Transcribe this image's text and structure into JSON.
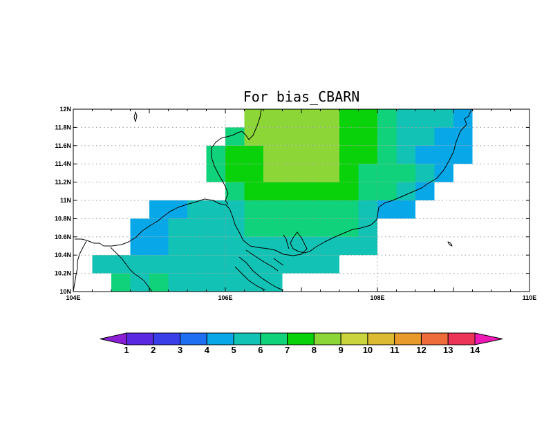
{
  "title": "For bias_CBARN",
  "map": {
    "lon_range": [
      104,
      110
    ],
    "lat_range": [
      10,
      12
    ],
    "cell_size": [
      0.25,
      0.2
    ],
    "lon_ticks": [
      {
        "value": 104,
        "label": "104E"
      },
      {
        "value": 106,
        "label": "106E"
      },
      {
        "value": 108,
        "label": "108E"
      },
      {
        "value": 110,
        "label": "110E"
      }
    ],
    "lat_ticks": [
      {
        "value": 10,
        "label": "10N"
      },
      {
        "value": 10.2,
        "label": "10.2N"
      },
      {
        "value": 10.4,
        "label": "10.4N"
      },
      {
        "value": 10.6,
        "label": "10.6N"
      },
      {
        "value": 10.8,
        "label": "10.8N"
      },
      {
        "value": 11,
        "label": "11N"
      },
      {
        "value": 11.2,
        "label": "11.2N"
      },
      {
        "value": 11.4,
        "label": "11.4N"
      },
      {
        "value": 11.6,
        "label": "11.6N"
      },
      {
        "value": 11.8,
        "label": "11.8N"
      },
      {
        "value": 12,
        "label": "12N"
      }
    ],
    "grid": "dotted"
  },
  "colorbar": {
    "levels": [
      "1",
      "2",
      "3",
      "4",
      "5",
      "6",
      "7",
      "8",
      "9",
      "10",
      "11",
      "12",
      "13",
      "14"
    ],
    "colors": [
      "#8a1fd6",
      "#5a28e0",
      "#3a3ee8",
      "#1e6ff2",
      "#08a8e8",
      "#12c2b4",
      "#0fd27a",
      "#0ad20a",
      "#8cd638",
      "#cad43c",
      "#dcbb32",
      "#e89a2a",
      "#ee6c3a",
      "#ec3458",
      "#ee18b4"
    ]
  },
  "chart_data": {
    "type": "heatmap",
    "title": "For bias_CBARN",
    "x_range": [
      104,
      110
    ],
    "y_range": [
      10,
      12
    ],
    "cell_width_deg": 0.25,
    "cell_height_deg": 0.2,
    "color_levels": [
      1,
      2,
      3,
      4,
      5,
      6,
      7,
      8,
      9,
      10,
      11,
      12,
      13,
      14
    ],
    "rows": [
      {
        "lat": [
          11.8,
          12.0
        ],
        "runs": [
          [
            106.25,
            107.5,
            "8"
          ],
          [
            107.5,
            108.0,
            "7"
          ],
          [
            108.0,
            108.25,
            "6"
          ],
          [
            108.25,
            109.0,
            "5"
          ],
          [
            109.0,
            109.25,
            "4"
          ]
        ]
      },
      {
        "lat": [
          11.6,
          11.8
        ],
        "runs": [
          [
            106.0,
            106.25,
            "6"
          ],
          [
            106.25,
            107.5,
            "8"
          ],
          [
            107.5,
            108.0,
            "7"
          ],
          [
            108.0,
            108.25,
            "6"
          ],
          [
            108.25,
            108.75,
            "5"
          ],
          [
            108.75,
            109.25,
            "4"
          ]
        ]
      },
      {
        "lat": [
          11.4,
          11.6
        ],
        "runs": [
          [
            105.75,
            106.0,
            "6"
          ],
          [
            106.0,
            106.5,
            "7"
          ],
          [
            106.5,
            107.5,
            "8"
          ],
          [
            107.5,
            108.0,
            "7"
          ],
          [
            108.0,
            108.25,
            "6"
          ],
          [
            108.25,
            108.5,
            "5"
          ],
          [
            108.5,
            109.25,
            "4"
          ]
        ]
      },
      {
        "lat": [
          11.2,
          11.4
        ],
        "runs": [
          [
            105.75,
            106.0,
            "6"
          ],
          [
            106.0,
            106.5,
            "7"
          ],
          [
            106.5,
            107.5,
            "8"
          ],
          [
            107.5,
            107.75,
            "7"
          ],
          [
            107.75,
            108.5,
            "6"
          ],
          [
            108.5,
            108.75,
            "5"
          ],
          [
            108.75,
            109.0,
            "4"
          ]
        ]
      },
      {
        "lat": [
          11.0,
          11.2
        ],
        "runs": [
          [
            106.0,
            106.25,
            "6"
          ],
          [
            106.25,
            107.75,
            "7"
          ],
          [
            107.75,
            108.25,
            "6"
          ],
          [
            108.25,
            108.5,
            "5"
          ],
          [
            108.5,
            108.75,
            "4"
          ]
        ]
      },
      {
        "lat": [
          10.8,
          11.0
        ],
        "runs": [
          [
            105.0,
            105.5,
            "4"
          ],
          [
            105.5,
            106.25,
            "5"
          ],
          [
            106.25,
            107.75,
            "6"
          ],
          [
            107.75,
            108.0,
            "5"
          ],
          [
            108.0,
            108.5,
            "4"
          ]
        ]
      },
      {
        "lat": [
          10.6,
          10.8
        ],
        "runs": [
          [
            104.75,
            105.25,
            "4"
          ],
          [
            105.25,
            106.25,
            "5"
          ],
          [
            106.25,
            107.75,
            "6"
          ],
          [
            107.75,
            108.0,
            "5"
          ]
        ]
      },
      {
        "lat": [
          10.4,
          10.6
        ],
        "runs": [
          [
            104.75,
            105.25,
            "4"
          ],
          [
            105.25,
            108.0,
            "5"
          ]
        ]
      },
      {
        "lat": [
          10.2,
          10.4
        ],
        "runs": [
          [
            104.25,
            107.5,
            "5"
          ]
        ]
      },
      {
        "lat": [
          10.0,
          10.2
        ],
        "runs": [
          [
            104.5,
            104.75,
            "6"
          ],
          [
            104.75,
            105.0,
            "5"
          ],
          [
            105.0,
            105.25,
            "6"
          ],
          [
            105.25,
            106.75,
            "5"
          ]
        ]
      }
    ]
  }
}
